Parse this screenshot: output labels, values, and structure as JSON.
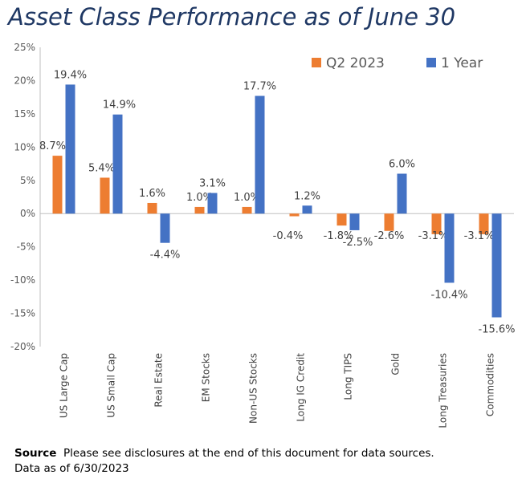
{
  "title": "Asset Class Performance as of June 30",
  "chart_data": {
    "type": "bar",
    "categories": [
      "US Large Cap",
      "US Small Cap",
      "Real Estate",
      "EM Stocks",
      "Non-US Stocks",
      "Long IG Credit",
      "Long TIPS",
      "Gold",
      "Long Treasuries",
      "Commodities"
    ],
    "series": [
      {
        "name": "Q2 2023",
        "color": "#ED7D31",
        "values": [
          8.7,
          5.4,
          1.6,
          1.0,
          1.0,
          -0.4,
          -1.8,
          -2.6,
          -3.1,
          -3.1
        ],
        "labels": [
          "8.7%",
          "5.4%",
          "1.6%",
          "1.0%",
          "1.0%",
          "-0.4%",
          "-1.8%",
          "-2.6%",
          "-3.1%",
          "-3.1%"
        ]
      },
      {
        "name": "1 Year",
        "color": "#4472C4",
        "values": [
          19.4,
          14.9,
          -4.4,
          3.1,
          17.7,
          1.2,
          -2.5,
          6.0,
          -10.4,
          -15.6
        ],
        "labels": [
          "19.4%",
          "14.9%",
          "-4.4%",
          "3.1%",
          "17.7%",
          "1.2%",
          "-2.5%",
          "6.0%",
          "-10.4%",
          "-15.6%"
        ]
      }
    ],
    "ylim": [
      -20,
      25
    ],
    "yticks": [
      25,
      20,
      15,
      10,
      5,
      0,
      -5,
      -10,
      -15,
      -20
    ],
    "ytick_labels": [
      "25%",
      "20%",
      "15%",
      "10%",
      "5%",
      "0%",
      "-5%",
      "-10%",
      "-15%",
      "-20%"
    ],
    "grid": false,
    "legend": "top-right"
  },
  "footer": {
    "source_label": "Source",
    "source_text": "Please see disclosures at the end of this document for data sources.",
    "data_note": "Data as of 6/30/2023"
  }
}
